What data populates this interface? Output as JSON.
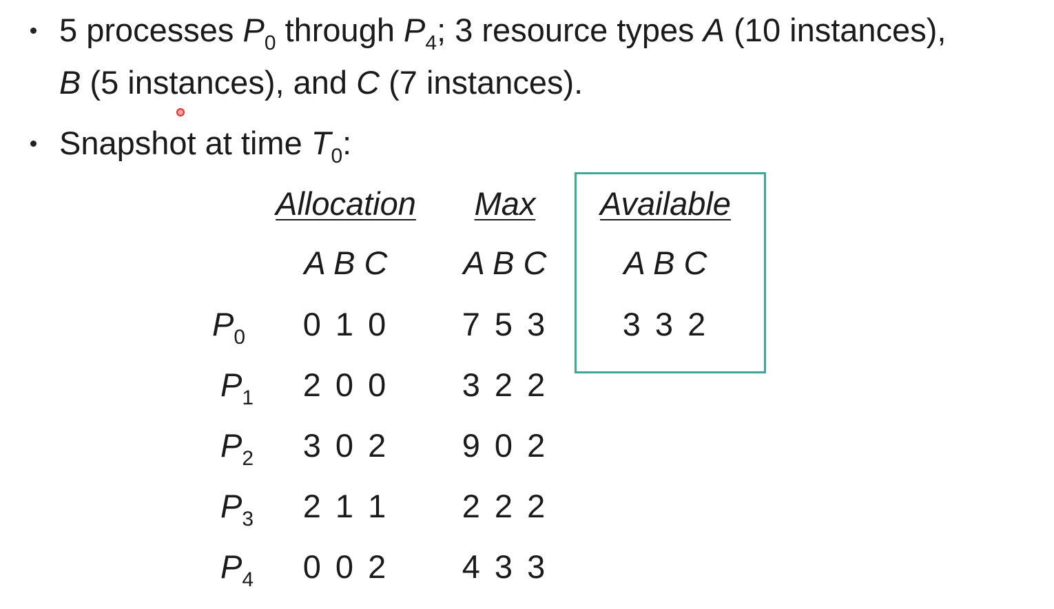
{
  "bullet_1": {
    "line_1": [
      "5 processes ",
      "P",
      "0",
      " through ",
      "P",
      "4",
      "; 3 resource types ",
      "A",
      " (10 instances),"
    ],
    "line_2": [
      "B",
      " (5 instances), and ",
      "C",
      " (7 instances)."
    ]
  },
  "bullet_2": [
    "Snapshot at time ",
    "T",
    "0",
    ":"
  ],
  "table": {
    "headers": [
      "Allocation",
      "Max",
      "Available"
    ],
    "subheaders": [
      "A B C",
      "A B C",
      "A B C"
    ],
    "rows": [
      {
        "process": [
          "P",
          "0"
        ],
        "allocation": "0 1 0",
        "max": "7 5 3"
      },
      {
        "process": [
          "P",
          "1"
        ],
        "allocation": "2 0 0",
        "max": "3 2 2"
      },
      {
        "process": [
          "P",
          "2"
        ],
        "allocation": "3 0 2",
        "max": "9 0 2"
      },
      {
        "process": [
          "P",
          "3"
        ],
        "allocation": "2 1 1",
        "max": "2 2 2"
      },
      {
        "process": [
          "P",
          "4"
        ],
        "allocation": "0 0 2",
        "max": "4 3 3"
      }
    ],
    "available": "3 3 2"
  }
}
